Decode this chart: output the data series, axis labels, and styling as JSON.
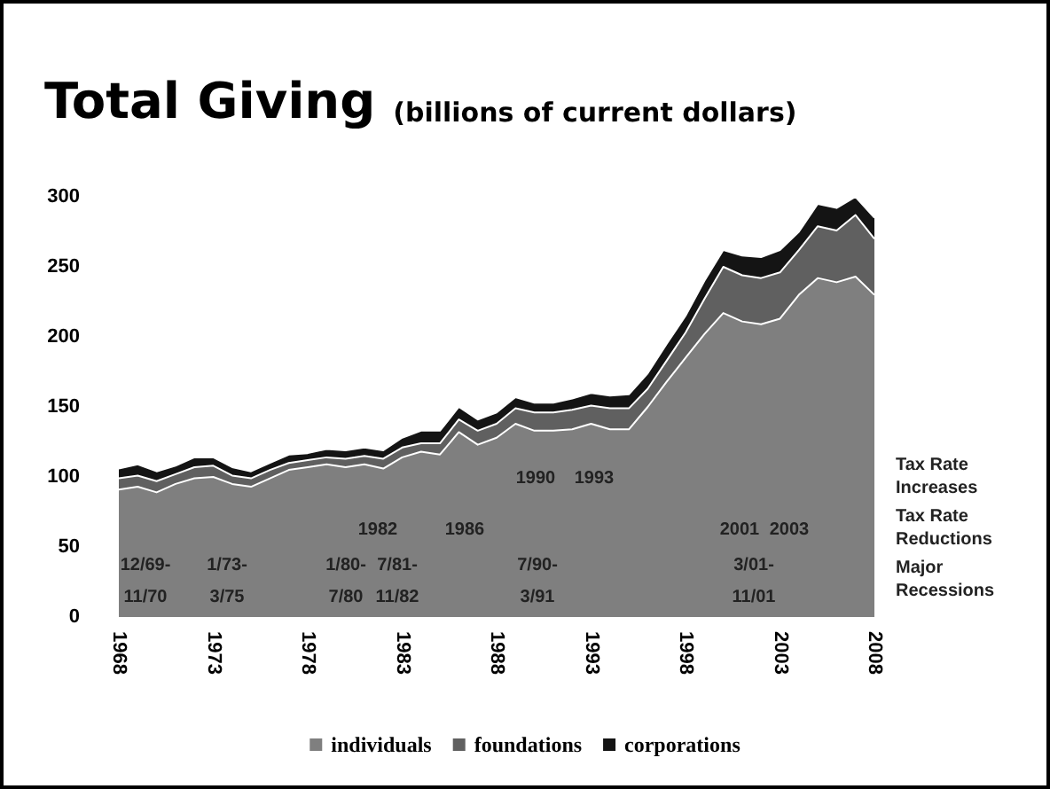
{
  "chart_data": {
    "type": "area",
    "stacked": true,
    "title": "Total Giving",
    "subtitle": "(billions of current dollars)",
    "x": [
      1968,
      1969,
      1970,
      1971,
      1972,
      1973,
      1974,
      1975,
      1976,
      1977,
      1978,
      1979,
      1980,
      1981,
      1982,
      1983,
      1984,
      1985,
      1986,
      1987,
      1988,
      1989,
      1990,
      1991,
      1992,
      1993,
      1994,
      1995,
      1996,
      1997,
      1998,
      1999,
      2000,
      2001,
      2002,
      2003,
      2004,
      2005,
      2006,
      2007,
      2008
    ],
    "series": [
      {
        "name": "individuals",
        "color": "#7f7f7f",
        "values": [
          91,
          93,
          89,
          95,
          99,
          100,
          95,
          93,
          99,
          105,
          107,
          109,
          107,
          109,
          106,
          114,
          118,
          116,
          132,
          123,
          128,
          138,
          133,
          133,
          134,
          138,
          134,
          134,
          150,
          168,
          185,
          202,
          217,
          211,
          209,
          213,
          230,
          242,
          239,
          243,
          230
        ]
      },
      {
        "name": "foundations",
        "color": "#606060",
        "values": [
          8,
          8,
          8,
          7,
          8,
          8,
          6,
          6,
          6,
          5,
          5,
          5,
          6,
          6,
          7,
          7,
          6,
          8,
          9,
          10,
          10,
          11,
          13,
          13,
          14,
          13,
          15,
          15,
          13,
          15,
          18,
          25,
          33,
          33,
          33,
          33,
          32,
          37,
          37,
          44,
          40
        ]
      },
      {
        "name": "corporations",
        "color": "#141414",
        "values": [
          7,
          8,
          7,
          6,
          7,
          6,
          6,
          5,
          5,
          6,
          5,
          6,
          6,
          6,
          6,
          7,
          9,
          9,
          9,
          8,
          8,
          8,
          7,
          7,
          8,
          9,
          9,
          10,
          11,
          12,
          12,
          13,
          12,
          14,
          15,
          16,
          13,
          16,
          16,
          13,
          15
        ]
      }
    ],
    "xlim": [
      1968,
      2008
    ],
    "xticks": [
      1968,
      1973,
      1978,
      1983,
      1988,
      1993,
      1998,
      2003,
      2008
    ],
    "ylim": [
      0,
      300
    ],
    "yticks": [
      0,
      50,
      100,
      150,
      200,
      250,
      300
    ],
    "grid": false,
    "legend": "bottom",
    "annotations": [
      "1990",
      "1993",
      "1982",
      "1986",
      "2001",
      "2003",
      "12/69-\n11/70",
      "1/73-\n3/75",
      "1/80-\n7/80",
      "7/81-\n11/82",
      "7/90-\n3/91",
      "3/01-\n11/01",
      "Tax Rate\nIncreases",
      "Tax Rate\nReductions",
      "Major\nRecessions"
    ]
  }
}
